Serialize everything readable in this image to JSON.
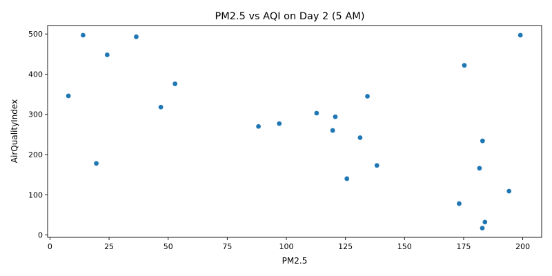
{
  "chart_data": {
    "type": "scatter",
    "title": "PM2.5 vs AQI on Day 2 (5 AM)",
    "xlabel": "PM2.5",
    "ylabel": "AirQualityIndex",
    "xlim": [
      -1,
      208
    ],
    "ylim": [
      -6,
      521
    ],
    "xticks": [
      0,
      25,
      50,
      75,
      100,
      125,
      150,
      175,
      200
    ],
    "yticks": [
      0,
      100,
      200,
      300,
      400,
      500
    ],
    "grid": false,
    "legend": "none",
    "color": "#1f77b4",
    "points": [
      {
        "x": 7.8,
        "y": 346
      },
      {
        "x": 14.0,
        "y": 497
      },
      {
        "x": 19.6,
        "y": 178
      },
      {
        "x": 24.2,
        "y": 448
      },
      {
        "x": 36.5,
        "y": 493
      },
      {
        "x": 46.9,
        "y": 318
      },
      {
        "x": 52.9,
        "y": 376
      },
      {
        "x": 88.2,
        "y": 270
      },
      {
        "x": 97.0,
        "y": 277
      },
      {
        "x": 112.8,
        "y": 303
      },
      {
        "x": 119.6,
        "y": 260
      },
      {
        "x": 120.7,
        "y": 294
      },
      {
        "x": 125.6,
        "y": 140
      },
      {
        "x": 131.2,
        "y": 242
      },
      {
        "x": 134.3,
        "y": 345
      },
      {
        "x": 138.3,
        "y": 173
      },
      {
        "x": 173.1,
        "y": 78
      },
      {
        "x": 175.3,
        "y": 422
      },
      {
        "x": 181.7,
        "y": 166
      },
      {
        "x": 182.9,
        "y": 17
      },
      {
        "x": 183.0,
        "y": 234
      },
      {
        "x": 184.0,
        "y": 32
      },
      {
        "x": 194.2,
        "y": 109
      },
      {
        "x": 199.0,
        "y": 497
      }
    ]
  }
}
